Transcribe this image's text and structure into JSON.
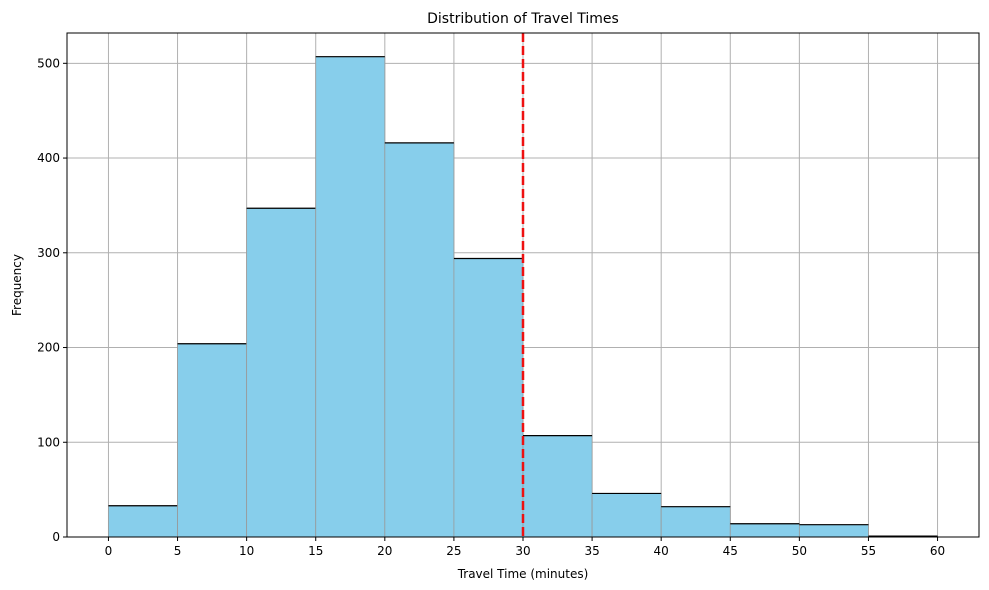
{
  "chart_data": {
    "type": "bar",
    "title": "Distribution of Travel Times",
    "xlabel": "Travel Time (minutes)",
    "ylabel": "Frequency",
    "bin_edges": [
      0,
      5,
      10,
      15,
      20,
      25,
      30,
      35,
      40,
      45,
      50,
      55,
      60
    ],
    "values": [
      33,
      204,
      347,
      507,
      416,
      294,
      107,
      46,
      32,
      14,
      13,
      1
    ],
    "xlim": [
      -3,
      63
    ],
    "ylim": [
      0,
      532
    ],
    "x_ticks": [
      "0",
      "5",
      "10",
      "15",
      "20",
      "25",
      "30",
      "35",
      "40",
      "45",
      "50",
      "55",
      "60"
    ],
    "y_ticks": [
      "0",
      "100",
      "200",
      "300",
      "400",
      "500"
    ],
    "reference_line": {
      "x": 30,
      "style": "dashed",
      "color": "#ee1111"
    },
    "grid": true,
    "colors": {
      "bar_fill": "#87ceeb",
      "bar_edge": "#000000",
      "grid": "#b0b0b0"
    }
  }
}
